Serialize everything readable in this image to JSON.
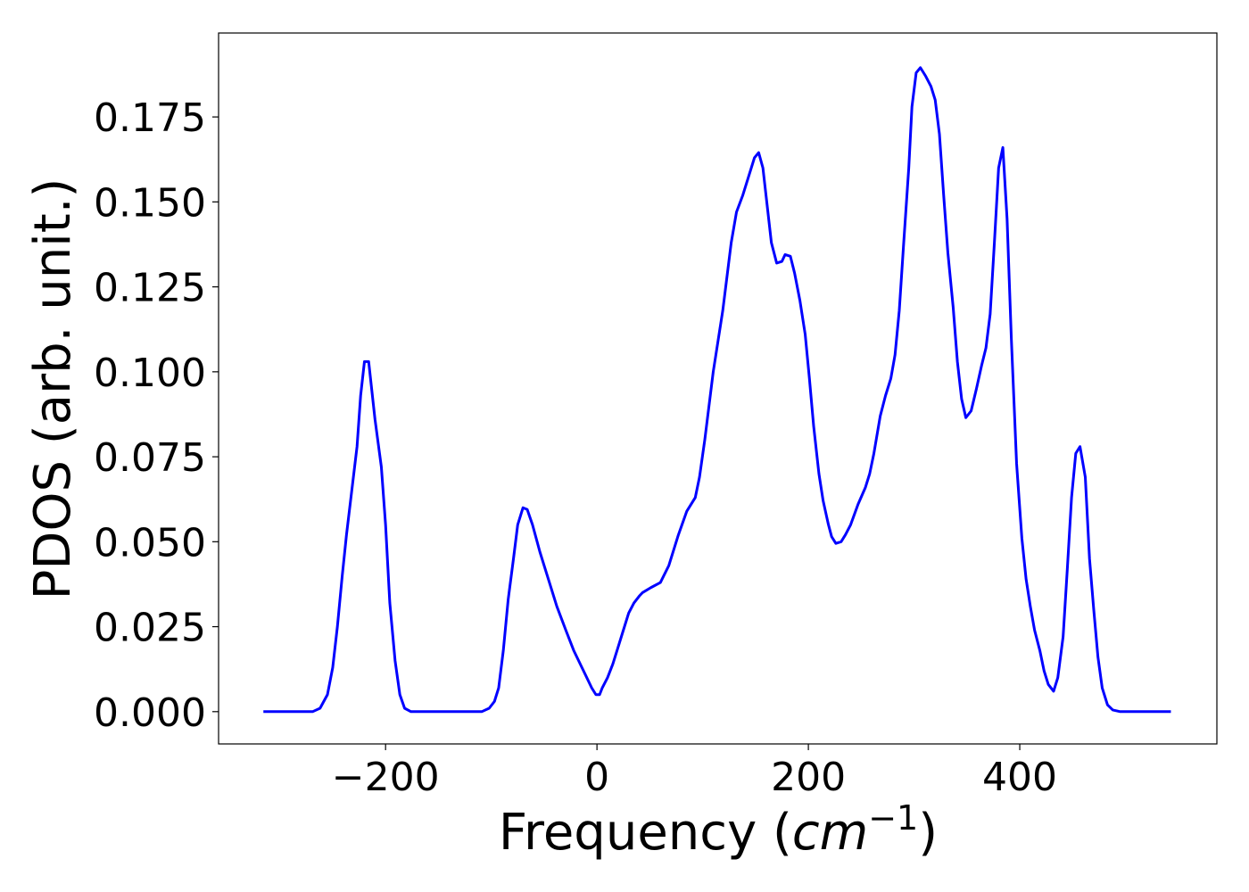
{
  "chart_data": {
    "type": "line",
    "x_label": {
      "text": "Frequency (",
      "unit": "cm",
      "exponent": "−1",
      "close": ")"
    },
    "y_label": "PDOS (arb. unit.)",
    "xlim": [
      -358,
      586.5
    ],
    "ylim": [
      -0.0095,
      0.1997
    ],
    "xticks": [
      {
        "value": -200,
        "label": "−200"
      },
      0,
      200,
      400
    ],
    "yticks": [
      {
        "value": 0,
        "label": "0.000"
      },
      {
        "value": 0.025,
        "label": "0.025"
      },
      {
        "value": 0.05,
        "label": "0.050"
      },
      {
        "value": 0.075,
        "label": "0.075"
      },
      {
        "value": 0.1,
        "label": "0.100"
      },
      {
        "value": 0.125,
        "label": "0.125"
      },
      {
        "value": 0.15,
        "label": "0.150"
      },
      {
        "value": 0.175,
        "label": "0.175"
      }
    ],
    "grid": false,
    "x": [
      -315.6,
      -269,
      -262,
      -255,
      -250,
      -245.6,
      -241,
      -237,
      -232,
      -227,
      -223.6,
      -220,
      -216,
      -210,
      -204,
      -200,
      -196,
      -191,
      -186.5,
      -182,
      -176,
      -109,
      -102,
      -97,
      -93,
      -88.6,
      -84,
      -79,
      -75,
      -70,
      -66,
      -61,
      -54,
      -46,
      -38,
      -29.5,
      -22,
      -12.7,
      -5,
      -1,
      2.5,
      5,
      10,
      15,
      20,
      25,
      30,
      35,
      40,
      43,
      51,
      60,
      68,
      77,
      85,
      93,
      97,
      102,
      110,
      119,
      127,
      132,
      138,
      143,
      149,
      153,
      157,
      161,
      165,
      170,
      175,
      178,
      183,
      187,
      192,
      197,
      201,
      205,
      210,
      214,
      219,
      222,
      226,
      231,
      235,
      240,
      247,
      254,
      258,
      262,
      268,
      273,
      278,
      282,
      286,
      290,
      295,
      298,
      302,
      306,
      311,
      316,
      320,
      324,
      328,
      332,
      337,
      341,
      345,
      349,
      354,
      359,
      364,
      368,
      372,
      376,
      380,
      384,
      388,
      392,
      397,
      402,
      406,
      410,
      414,
      419,
      423,
      427,
      432,
      436,
      441,
      445,
      449,
      453,
      457,
      462,
      466,
      470,
      474,
      478,
      483,
      488,
      495,
      543
    ],
    "series": [
      {
        "name": "PDOS",
        "color": "#0000ff",
        "values": [
          0,
          0,
          0.001,
          0.005,
          0.013,
          0.025,
          0.04,
          0.052,
          0.065,
          0.078,
          0.093,
          0.103,
          0.103,
          0.086,
          0.072,
          0.055,
          0.032,
          0.015,
          0.005,
          0.001,
          0,
          0,
          0.001,
          0.003,
          0.007,
          0.018,
          0.033,
          0.045,
          0.055,
          0.06,
          0.0595,
          0.055,
          0.047,
          0.039,
          0.031,
          0.024,
          0.018,
          0.012,
          0.007,
          0.005,
          0.005,
          0.007,
          0.01,
          0.014,
          0.019,
          0.024,
          0.029,
          0.032,
          0.034,
          0.035,
          0.0365,
          0.038,
          0.043,
          0.052,
          0.059,
          0.063,
          0.069,
          0.08,
          0.1,
          0.118,
          0.138,
          0.147,
          0.152,
          0.157,
          0.163,
          0.1645,
          0.16,
          0.149,
          0.138,
          0.132,
          0.1325,
          0.1345,
          0.134,
          0.129,
          0.121,
          0.111,
          0.098,
          0.084,
          0.07,
          0.062,
          0.055,
          0.0515,
          0.0495,
          0.05,
          0.052,
          0.055,
          0.061,
          0.066,
          0.07,
          0.076,
          0.087,
          0.093,
          0.098,
          0.105,
          0.118,
          0.137,
          0.16,
          0.178,
          0.188,
          0.1895,
          0.187,
          0.184,
          0.18,
          0.17,
          0.152,
          0.135,
          0.119,
          0.103,
          0.092,
          0.0865,
          0.0885,
          0.095,
          0.102,
          0.107,
          0.117,
          0.138,
          0.16,
          0.166,
          0.145,
          0.11,
          0.073,
          0.051,
          0.039,
          0.031,
          0.024,
          0.018,
          0.012,
          0.008,
          0.006,
          0.01,
          0.022,
          0.042,
          0.063,
          0.076,
          0.078,
          0.069,
          0.045,
          0.03,
          0.016,
          0.007,
          0.002,
          0.0005,
          0,
          0
        ]
      }
    ]
  }
}
